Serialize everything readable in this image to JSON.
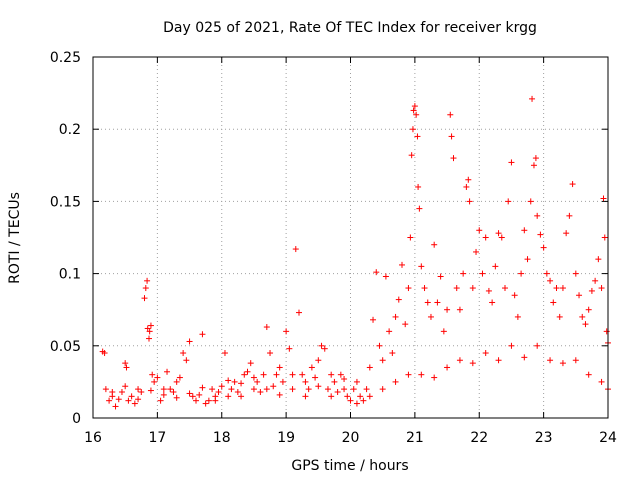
{
  "chart_data": {
    "type": "scatter",
    "title": "Day 025 of 2021, Rate Of TEC Index for receiver krgg",
    "xlabel": "GPS time / hours",
    "ylabel": "ROTI / TECUs",
    "xlim": [
      16,
      24
    ],
    "ylim": [
      0,
      0.25
    ],
    "xticks": [
      16,
      17,
      18,
      19,
      20,
      21,
      22,
      23,
      24
    ],
    "xtick_labels": [
      "16",
      "17",
      "18",
      "19",
      "20",
      "21",
      "22",
      "23",
      "24"
    ],
    "yticks": [
      0,
      0.05,
      0.1,
      0.15,
      0.2,
      0.25
    ],
    "ytick_labels": [
      "0",
      "0.05",
      "0.1",
      "0.15",
      "0.2",
      "0.25"
    ],
    "grid": true,
    "marker": "+",
    "marker_color": "#ff0000",
    "series": [
      {
        "name": "ROTI",
        "points": [
          [
            16.15,
            0.046
          ],
          [
            16.18,
            0.045
          ],
          [
            16.2,
            0.02
          ],
          [
            16.25,
            0.012
          ],
          [
            16.3,
            0.015
          ],
          [
            16.35,
            0.008
          ],
          [
            16.4,
            0.013
          ],
          [
            16.45,
            0.018
          ],
          [
            16.5,
            0.038
          ],
          [
            16.52,
            0.035
          ],
          [
            16.55,
            0.012
          ],
          [
            16.6,
            0.015
          ],
          [
            16.65,
            0.01
          ],
          [
            16.7,
            0.02
          ],
          [
            16.75,
            0.018
          ],
          [
            16.8,
            0.083
          ],
          [
            16.82,
            0.09
          ],
          [
            16.84,
            0.095
          ],
          [
            16.85,
            0.062
          ],
          [
            16.87,
            0.055
          ],
          [
            16.88,
            0.06
          ],
          [
            16.9,
            0.064
          ],
          [
            16.92,
            0.03
          ],
          [
            16.95,
            0.025
          ],
          [
            17.0,
            0.028
          ],
          [
            17.05,
            0.012
          ],
          [
            17.1,
            0.016
          ],
          [
            17.15,
            0.032
          ],
          [
            17.2,
            0.02
          ],
          [
            17.25,
            0.018
          ],
          [
            17.3,
            0.025
          ],
          [
            17.35,
            0.028
          ],
          [
            17.4,
            0.045
          ],
          [
            17.45,
            0.04
          ],
          [
            17.5,
            0.053
          ],
          [
            17.55,
            0.015
          ],
          [
            17.6,
            0.012
          ],
          [
            17.65,
            0.016
          ],
          [
            17.7,
            0.058
          ],
          [
            17.75,
            0.01
          ],
          [
            17.8,
            0.012
          ],
          [
            17.85,
            0.02
          ],
          [
            17.9,
            0.015
          ],
          [
            17.95,
            0.018
          ],
          [
            18.0,
            0.022
          ],
          [
            18.05,
            0.045
          ],
          [
            18.1,
            0.015
          ],
          [
            18.15,
            0.02
          ],
          [
            18.2,
            0.025
          ],
          [
            18.25,
            0.018
          ],
          [
            18.3,
            0.015
          ],
          [
            18.35,
            0.03
          ],
          [
            18.4,
            0.032
          ],
          [
            18.45,
            0.038
          ],
          [
            18.5,
            0.02
          ],
          [
            18.55,
            0.025
          ],
          [
            18.6,
            0.018
          ],
          [
            18.65,
            0.03
          ],
          [
            18.7,
            0.063
          ],
          [
            18.75,
            0.045
          ],
          [
            18.8,
            0.022
          ],
          [
            18.85,
            0.03
          ],
          [
            18.9,
            0.035
          ],
          [
            18.95,
            0.025
          ],
          [
            19.0,
            0.06
          ],
          [
            19.05,
            0.048
          ],
          [
            19.1,
            0.02
          ],
          [
            19.15,
            0.117
          ],
          [
            19.2,
            0.073
          ],
          [
            19.25,
            0.03
          ],
          [
            19.3,
            0.025
          ],
          [
            19.35,
            0.02
          ],
          [
            19.4,
            0.035
          ],
          [
            19.45,
            0.028
          ],
          [
            19.5,
            0.04
          ],
          [
            19.55,
            0.05
          ],
          [
            19.6,
            0.048
          ],
          [
            19.65,
            0.02
          ],
          [
            19.7,
            0.015
          ],
          [
            19.75,
            0.025
          ],
          [
            19.8,
            0.018
          ],
          [
            19.85,
            0.03
          ],
          [
            19.9,
            0.02
          ],
          [
            19.95,
            0.015
          ],
          [
            20.0,
            0.012
          ],
          [
            20.05,
            0.02
          ],
          [
            20.1,
            0.025
          ],
          [
            20.15,
            0.015
          ],
          [
            20.2,
            0.012
          ],
          [
            20.25,
            0.02
          ],
          [
            20.3,
            0.035
          ],
          [
            20.35,
            0.068
          ],
          [
            20.4,
            0.101
          ],
          [
            20.45,
            0.05
          ],
          [
            20.5,
            0.04
          ],
          [
            20.55,
            0.098
          ],
          [
            20.6,
            0.06
          ],
          [
            20.65,
            0.045
          ],
          [
            20.7,
            0.07
          ],
          [
            20.75,
            0.082
          ],
          [
            20.8,
            0.106
          ],
          [
            20.85,
            0.065
          ],
          [
            20.9,
            0.09
          ],
          [
            20.93,
            0.125
          ],
          [
            20.95,
            0.182
          ],
          [
            20.97,
            0.2
          ],
          [
            20.98,
            0.213
          ],
          [
            21.0,
            0.216
          ],
          [
            21.02,
            0.21
          ],
          [
            21.04,
            0.195
          ],
          [
            21.05,
            0.16
          ],
          [
            21.07,
            0.145
          ],
          [
            21.1,
            0.105
          ],
          [
            21.15,
            0.09
          ],
          [
            21.2,
            0.08
          ],
          [
            21.25,
            0.07
          ],
          [
            21.3,
            0.12
          ],
          [
            21.35,
            0.08
          ],
          [
            21.4,
            0.098
          ],
          [
            21.45,
            0.06
          ],
          [
            21.5,
            0.075
          ],
          [
            21.55,
            0.21
          ],
          [
            21.57,
            0.195
          ],
          [
            21.6,
            0.18
          ],
          [
            21.65,
            0.09
          ],
          [
            21.7,
            0.075
          ],
          [
            21.75,
            0.1
          ],
          [
            21.8,
            0.16
          ],
          [
            21.83,
            0.165
          ],
          [
            21.85,
            0.15
          ],
          [
            21.9,
            0.09
          ],
          [
            21.95,
            0.115
          ],
          [
            22.0,
            0.13
          ],
          [
            22.05,
            0.1
          ],
          [
            22.1,
            0.125
          ],
          [
            22.15,
            0.088
          ],
          [
            22.2,
            0.08
          ],
          [
            22.25,
            0.105
          ],
          [
            22.3,
            0.128
          ],
          [
            22.35,
            0.125
          ],
          [
            22.4,
            0.09
          ],
          [
            22.45,
            0.15
          ],
          [
            22.5,
            0.177
          ],
          [
            22.55,
            0.085
          ],
          [
            22.6,
            0.07
          ],
          [
            22.65,
            0.1
          ],
          [
            22.7,
            0.13
          ],
          [
            22.75,
            0.11
          ],
          [
            22.8,
            0.15
          ],
          [
            22.82,
            0.221
          ],
          [
            22.85,
            0.175
          ],
          [
            22.88,
            0.18
          ],
          [
            22.9,
            0.14
          ],
          [
            22.95,
            0.127
          ],
          [
            23.0,
            0.118
          ],
          [
            23.05,
            0.1
          ],
          [
            23.1,
            0.095
          ],
          [
            23.15,
            0.08
          ],
          [
            23.2,
            0.09
          ],
          [
            23.25,
            0.07
          ],
          [
            23.3,
            0.09
          ],
          [
            23.35,
            0.128
          ],
          [
            23.4,
            0.14
          ],
          [
            23.45,
            0.162
          ],
          [
            23.5,
            0.1
          ],
          [
            23.55,
            0.085
          ],
          [
            23.6,
            0.07
          ],
          [
            23.65,
            0.065
          ],
          [
            23.7,
            0.075
          ],
          [
            23.75,
            0.088
          ],
          [
            23.8,
            0.095
          ],
          [
            23.85,
            0.11
          ],
          [
            23.9,
            0.09
          ],
          [
            23.93,
            0.152
          ],
          [
            23.95,
            0.125
          ],
          [
            23.98,
            0.06
          ],
          [
            24.0,
            0.052
          ],
          [
            16.3,
            0.018
          ],
          [
            16.5,
            0.022
          ],
          [
            16.7,
            0.013
          ],
          [
            16.9,
            0.019
          ],
          [
            17.1,
            0.02
          ],
          [
            17.3,
            0.014
          ],
          [
            17.5,
            0.017
          ],
          [
            17.7,
            0.021
          ],
          [
            17.9,
            0.012
          ],
          [
            18.1,
            0.026
          ],
          [
            18.3,
            0.024
          ],
          [
            18.5,
            0.028
          ],
          [
            18.7,
            0.02
          ],
          [
            18.9,
            0.016
          ],
          [
            19.1,
            0.03
          ],
          [
            19.3,
            0.015
          ],
          [
            19.5,
            0.022
          ],
          [
            19.7,
            0.03
          ],
          [
            19.9,
            0.027
          ],
          [
            20.1,
            0.01
          ],
          [
            20.3,
            0.015
          ],
          [
            20.5,
            0.02
          ],
          [
            20.7,
            0.025
          ],
          [
            20.9,
            0.03
          ],
          [
            21.1,
            0.03
          ],
          [
            21.3,
            0.028
          ],
          [
            21.5,
            0.035
          ],
          [
            21.7,
            0.04
          ],
          [
            21.9,
            0.038
          ],
          [
            22.1,
            0.045
          ],
          [
            22.3,
            0.04
          ],
          [
            22.5,
            0.05
          ],
          [
            22.7,
            0.042
          ],
          [
            22.9,
            0.05
          ],
          [
            23.1,
            0.04
          ],
          [
            23.3,
            0.038
          ],
          [
            23.5,
            0.04
          ],
          [
            23.7,
            0.03
          ],
          [
            23.9,
            0.025
          ],
          [
            24.0,
            0.02
          ]
        ]
      }
    ]
  }
}
